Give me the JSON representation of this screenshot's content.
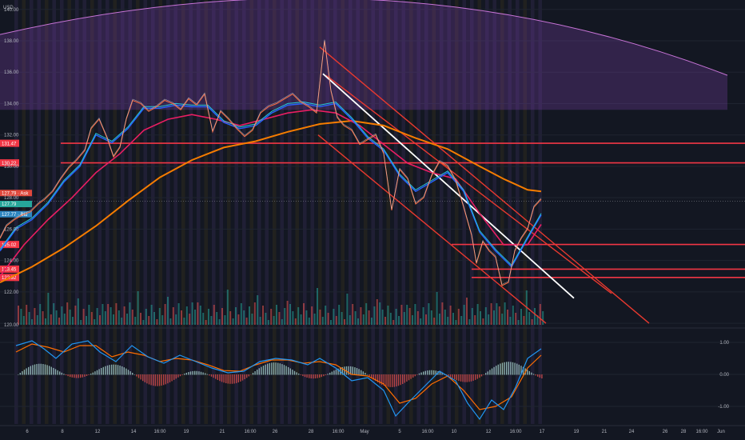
{
  "currency_label": "USD",
  "colors": {
    "background": "#131722",
    "grid": "#1f2430",
    "axis_text": "#b2b5be",
    "resistance": "#f23645",
    "channel": "#e8392f",
    "trend": "#ffffff",
    "arc_fill": "#7b3fa8",
    "arc_stroke": "#c774d6",
    "ema_short": "#2962ff",
    "ema_cyan": "#26c6da",
    "ema_mid": "#e91e63",
    "ema_long": "#f57c00",
    "price_line": "#ff7043",
    "volume_up": "#26a69a",
    "volume_down": "#ef5350",
    "macd_line": "#2196f3",
    "signal_line": "#ff6d00",
    "stripe_a": "#3a2d5a",
    "stripe_b": "#3b3319"
  },
  "chart_data": [
    {
      "type": "line",
      "name": "price-pane",
      "y_ticks": [
        120.0,
        122.0,
        124.0,
        126.0,
        128.0,
        130.0,
        132.0,
        134.0,
        136.0,
        138.0,
        140.0
      ],
      "y_tick_labels": [
        "120.00",
        "122.00",
        "124.00",
        "126.00",
        "128.00",
        "130.00",
        "132.00",
        "134.00",
        "136.00",
        "138.00",
        "140.00"
      ],
      "ylim": [
        119.8,
        140.6
      ],
      "x_tick_labels": [
        "6",
        "8",
        "12",
        "14",
        "16:00",
        "19",
        "21",
        "16:00",
        "26",
        "28",
        "16:00",
        "May",
        "5",
        "16:00",
        "10",
        "12",
        "16:00",
        "17",
        "19",
        "21",
        "24",
        "26",
        "28",
        "16:00",
        "Jun"
      ],
      "price_series": [
        [
          0,
          125.4
        ],
        [
          8,
          126.2
        ],
        [
          18,
          126.6
        ],
        [
          28,
          126.9
        ],
        [
          38,
          127.1
        ],
        [
          48,
          127.6
        ],
        [
          56,
          127.9
        ],
        [
          66,
          128.4
        ],
        [
          76,
          129.2
        ],
        [
          86,
          129.9
        ],
        [
          96,
          130.4
        ],
        [
          106,
          131.0
        ],
        [
          114,
          132.4
        ],
        [
          124,
          133.0
        ],
        [
          134,
          131.8
        ],
        [
          142,
          130.6
        ],
        [
          150,
          131.2
        ],
        [
          158,
          133.0
        ],
        [
          166,
          134.2
        ],
        [
          176,
          134.0
        ],
        [
          186,
          133.5
        ],
        [
          196,
          133.8
        ],
        [
          206,
          134.2
        ],
        [
          216,
          134.0
        ],
        [
          226,
          133.6
        ],
        [
          236,
          134.3
        ],
        [
          246,
          133.9
        ],
        [
          256,
          134.6
        ],
        [
          266,
          132.2
        ],
        [
          276,
          133.5
        ],
        [
          286,
          133.0
        ],
        [
          296,
          132.4
        ],
        [
          306,
          131.9
        ],
        [
          316,
          132.3
        ],
        [
          326,
          133.4
        ],
        [
          336,
          133.8
        ],
        [
          346,
          134.0
        ],
        [
          356,
          134.3
        ],
        [
          366,
          134.6
        ],
        [
          376,
          134.1
        ],
        [
          386,
          133.8
        ],
        [
          396,
          133.4
        ],
        [
          406,
          138.0
        ],
        [
          414,
          134.8
        ],
        [
          422,
          133.1
        ],
        [
          430,
          132.6
        ],
        [
          440,
          132.3
        ],
        [
          450,
          131.4
        ],
        [
          460,
          131.7
        ],
        [
          470,
          132.0
        ],
        [
          480,
          130.8
        ],
        [
          490,
          127.2
        ],
        [
          500,
          129.8
        ],
        [
          510,
          129.2
        ],
        [
          520,
          127.6
        ],
        [
          530,
          128.0
        ],
        [
          540,
          129.4
        ],
        [
          550,
          130.3
        ],
        [
          560,
          130.0
        ],
        [
          570,
          129.1
        ],
        [
          580,
          127.4
        ],
        [
          590,
          125.6
        ],
        [
          596,
          123.8
        ],
        [
          604,
          125.2
        ],
        [
          612,
          124.6
        ],
        [
          620,
          124.2
        ],
        [
          628,
          122.4
        ],
        [
          636,
          122.6
        ],
        [
          644,
          124.6
        ],
        [
          652,
          125.4
        ],
        [
          660,
          126.0
        ],
        [
          668,
          127.4
        ],
        [
          677,
          127.9
        ]
      ],
      "ema_short_series": [
        [
          0,
          124.6
        ],
        [
          20,
          126.0
        ],
        [
          40,
          126.6
        ],
        [
          60,
          127.6
        ],
        [
          80,
          129.0
        ],
        [
          100,
          130.0
        ],
        [
          120,
          132.0
        ],
        [
          140,
          131.5
        ],
        [
          160,
          132.4
        ],
        [
          180,
          133.7
        ],
        [
          200,
          133.7
        ],
        [
          220,
          133.9
        ],
        [
          240,
          133.8
        ],
        [
          260,
          133.8
        ],
        [
          280,
          132.8
        ],
        [
          300,
          132.4
        ],
        [
          320,
          132.6
        ],
        [
          340,
          133.4
        ],
        [
          360,
          133.9
        ],
        [
          380,
          134.0
        ],
        [
          400,
          133.8
        ],
        [
          420,
          134.0
        ],
        [
          440,
          133.0
        ],
        [
          460,
          131.8
        ],
        [
          480,
          131.0
        ],
        [
          500,
          129.4
        ],
        [
          520,
          128.4
        ],
        [
          540,
          129.0
        ],
        [
          560,
          129.6
        ],
        [
          580,
          128.4
        ],
        [
          600,
          125.8
        ],
        [
          620,
          124.6
        ],
        [
          640,
          123.6
        ],
        [
          660,
          125.4
        ],
        [
          677,
          126.9
        ]
      ],
      "ema_mid_series": [
        [
          0,
          123.0
        ],
        [
          30,
          125.0
        ],
        [
          60,
          126.6
        ],
        [
          90,
          128.0
        ],
        [
          120,
          129.6
        ],
        [
          150,
          130.8
        ],
        [
          180,
          132.3
        ],
        [
          210,
          133.0
        ],
        [
          240,
          133.3
        ],
        [
          270,
          133.0
        ],
        [
          300,
          132.6
        ],
        [
          330,
          133.0
        ],
        [
          360,
          133.4
        ],
        [
          390,
          133.6
        ],
        [
          420,
          133.4
        ],
        [
          450,
          132.6
        ],
        [
          480,
          131.4
        ],
        [
          510,
          130.2
        ],
        [
          540,
          129.6
        ],
        [
          570,
          129.2
        ],
        [
          600,
          127.0
        ],
        [
          630,
          125.0
        ],
        [
          660,
          125.0
        ],
        [
          677,
          126.3
        ]
      ],
      "ema_long_series": [
        [
          0,
          122.6
        ],
        [
          40,
          123.6
        ],
        [
          80,
          124.8
        ],
        [
          120,
          126.2
        ],
        [
          160,
          127.8
        ],
        [
          200,
          129.3
        ],
        [
          240,
          130.4
        ],
        [
          280,
          131.2
        ],
        [
          320,
          131.6
        ],
        [
          360,
          132.2
        ],
        [
          400,
          132.7
        ],
        [
          440,
          132.9
        ],
        [
          480,
          132.6
        ],
        [
          520,
          131.8
        ],
        [
          560,
          131.1
        ],
        [
          600,
          130.0
        ],
        [
          630,
          129.2
        ],
        [
          660,
          128.5
        ],
        [
          677,
          128.4
        ]
      ],
      "horizontal_levels": [
        {
          "label": "131.47",
          "value": 131.47,
          "x_start": 76
        },
        {
          "label": "130.22",
          "value": 130.22,
          "x_start": 76
        },
        {
          "label": "125.02",
          "value": 125.02,
          "x_start": 565
        },
        {
          "label": "123.45",
          "value": 123.45,
          "x_start": 590
        },
        {
          "label": "122.92",
          "value": 122.92,
          "x_start": 590
        }
      ],
      "price_badges": [
        {
          "label": "127.79 · Ask",
          "value": 128.3,
          "kind": "ask"
        },
        {
          "label": "127.79",
          "value": 127.6,
          "kind": "last"
        },
        {
          "label": "127.77 · Bid",
          "value": 126.95,
          "kind": "bid"
        }
      ],
      "last_price": 127.79,
      "trend_lines": [
        {
          "kind": "channel",
          "points": [
            [
              400,
              137.6
            ],
            [
              812,
              120.0
            ]
          ]
        },
        {
          "kind": "channel",
          "points": [
            [
              398,
              132.0
            ],
            [
              683,
              120.0
            ]
          ]
        },
        {
          "kind": "channel",
          "points": [
            [
              408,
              135.8
            ],
            [
              765,
              121.9
            ]
          ]
        },
        {
          "kind": "trend",
          "points": [
            [
              404,
              135.9
            ],
            [
              718,
              121.6
            ]
          ]
        }
      ],
      "arc": {
        "center_x": 488,
        "peak_value": 140.6,
        "left_value": 138.4,
        "right_x": 910,
        "right_value": 135.8,
        "base_value": 133.6
      }
    },
    {
      "type": "line",
      "name": "macd-pane",
      "y_ticks": [
        1.0,
        0.0,
        -1.0
      ],
      "y_tick_labels": [
        "1.00",
        "0.00",
        "-1.00"
      ],
      "ylim": [
        -1.55,
        1.4
      ],
      "macd_series": [
        [
          20,
          0.9
        ],
        [
          40,
          1.05
        ],
        [
          55,
          0.8
        ],
        [
          70,
          0.5
        ],
        [
          90,
          0.95
        ],
        [
          110,
          1.05
        ],
        [
          125,
          0.7
        ],
        [
          145,
          0.4
        ],
        [
          165,
          0.9
        ],
        [
          185,
          0.55
        ],
        [
          205,
          0.35
        ],
        [
          225,
          0.6
        ],
        [
          245,
          0.4
        ],
        [
          265,
          0.2
        ],
        [
          285,
          0.05
        ],
        [
          305,
          0.1
        ],
        [
          325,
          0.4
        ],
        [
          345,
          0.5
        ],
        [
          365,
          0.45
        ],
        [
          385,
          0.3
        ],
        [
          400,
          0.5
        ],
        [
          420,
          0.2
        ],
        [
          440,
          -0.2
        ],
        [
          460,
          -0.1
        ],
        [
          480,
          -0.5
        ],
        [
          495,
          -1.3
        ],
        [
          510,
          -0.9
        ],
        [
          530,
          -0.4
        ],
        [
          550,
          0.1
        ],
        [
          570,
          -0.2
        ],
        [
          585,
          -0.9
        ],
        [
          600,
          -1.4
        ],
        [
          615,
          -0.8
        ],
        [
          630,
          -1.1
        ],
        [
          645,
          -0.4
        ],
        [
          660,
          0.5
        ],
        [
          677,
          0.8
        ]
      ],
      "signal_series": [
        [
          20,
          0.7
        ],
        [
          40,
          0.95
        ],
        [
          60,
          0.85
        ],
        [
          80,
          0.7
        ],
        [
          100,
          0.9
        ],
        [
          120,
          0.9
        ],
        [
          140,
          0.55
        ],
        [
          160,
          0.7
        ],
        [
          180,
          0.6
        ],
        [
          200,
          0.4
        ],
        [
          220,
          0.5
        ],
        [
          240,
          0.45
        ],
        [
          260,
          0.3
        ],
        [
          280,
          0.12
        ],
        [
          300,
          0.1
        ],
        [
          320,
          0.3
        ],
        [
          340,
          0.45
        ],
        [
          360,
          0.45
        ],
        [
          380,
          0.35
        ],
        [
          400,
          0.4
        ],
        [
          420,
          0.3
        ],
        [
          440,
          0.0
        ],
        [
          460,
          -0.05
        ],
        [
          480,
          -0.3
        ],
        [
          500,
          -0.9
        ],
        [
          520,
          -0.75
        ],
        [
          540,
          -0.3
        ],
        [
          560,
          -0.05
        ],
        [
          580,
          -0.5
        ],
        [
          600,
          -1.1
        ],
        [
          620,
          -1.0
        ],
        [
          640,
          -0.7
        ],
        [
          660,
          0.2
        ],
        [
          677,
          0.6
        ]
      ]
    }
  ]
}
